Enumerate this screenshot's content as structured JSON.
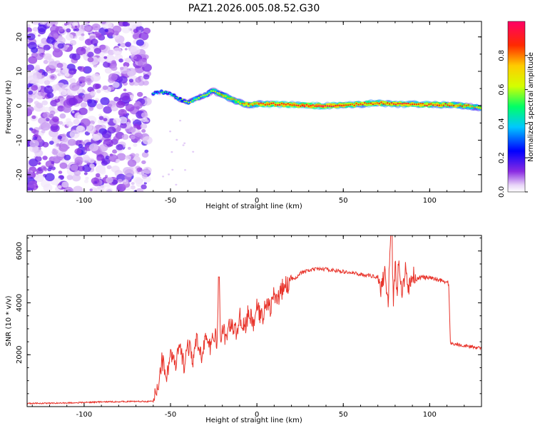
{
  "title": "PAZ1.2026.005.08.52.G30",
  "chart_data": [
    {
      "type": "heatmap",
      "name": "spectrogram",
      "xlabel": "Height of straight line (km)",
      "ylabel": "Frequency (Hz)",
      "xlim": [
        -133,
        130
      ],
      "ylim": [
        -25,
        24.5
      ],
      "xticks": [
        -100,
        -50,
        0,
        50,
        100
      ],
      "yticks": [
        -20,
        -10,
        0,
        10,
        20
      ],
      "xtick_labels": [
        "-100",
        "-50",
        "0",
        "50",
        "100"
      ],
      "ytick_labels": [
        "-20",
        "-10",
        "0",
        "10",
        "20"
      ],
      "noise_region_x": [
        -133,
        -60
      ],
      "signal_track": {
        "x": [
          -60,
          -55,
          -50,
          -45,
          -40,
          -35,
          -30,
          -25,
          -20,
          -15,
          -10,
          -5,
          0,
          10,
          20,
          30,
          40,
          50,
          60,
          70,
          80,
          90,
          100,
          110,
          120,
          130
        ],
        "freq": [
          3.5,
          4.0,
          3.5,
          2.0,
          1.0,
          2.0,
          3.0,
          4.5,
          3.0,
          2.0,
          1.0,
          0.3,
          0.5,
          0.5,
          0.3,
          0.0,
          0.0,
          0.2,
          0.5,
          0.8,
          0.5,
          0.5,
          0.3,
          0.3,
          0.0,
          -0.5
        ],
        "amplitude": [
          0.4,
          0.45,
          0.5,
          0.5,
          0.55,
          0.6,
          0.65,
          0.65,
          0.75,
          0.75,
          0.75,
          0.8,
          0.85,
          0.9,
          0.92,
          0.95,
          0.95,
          0.9,
          0.88,
          0.85,
          0.9,
          0.9,
          0.88,
          0.85,
          0.8,
          0.7
        ]
      },
      "colorbar": {
        "label": "Normalized spectral amplitude",
        "range": [
          0,
          1
        ],
        "ticks": [
          0.0,
          0.2,
          0.4,
          0.6,
          0.8
        ],
        "tick_labels": [
          "0.0",
          "0.2",
          "0.4",
          "0.6",
          "0.8"
        ],
        "colors": [
          "#ffffff",
          "#e8d4f8",
          "#8a2be2",
          "#0000ff",
          "#00c8ff",
          "#00ff66",
          "#d4ff00",
          "#ffcc00",
          "#ff2a00",
          "#ff0066"
        ]
      }
    },
    {
      "type": "line",
      "name": "snr",
      "xlabel": "Height of straight line (km)",
      "ylabel": "SNR (10 * v/v)",
      "xlim": [
        -133,
        130
      ],
      "ylim": [
        0,
        6600
      ],
      "xticks": [
        -100,
        -50,
        0,
        50,
        100
      ],
      "yticks": [
        2000,
        4000,
        6000
      ],
      "xtick_labels": [
        "-100",
        "-50",
        "0",
        "50",
        "100"
      ],
      "ytick_labels": [
        "2000",
        "4000",
        "6000"
      ],
      "color": "#e8332a",
      "x": [
        -133,
        -110,
        -90,
        -70,
        -60,
        -57,
        -55,
        -52,
        -50,
        -47,
        -45,
        -42,
        -40,
        -37,
        -35,
        -32,
        -30,
        -27,
        -25,
        -23,
        -22,
        -21,
        -20,
        -18,
        -15,
        -12,
        -10,
        -7,
        -5,
        -2,
        0,
        3,
        5,
        8,
        10,
        13,
        15,
        18,
        20,
        23,
        25,
        28,
        30,
        35,
        40,
        45,
        50,
        55,
        60,
        65,
        70,
        72,
        74,
        76,
        77,
        78,
        79,
        80,
        81,
        82,
        84,
        86,
        88,
        90,
        92,
        95,
        100,
        105,
        110,
        111,
        112,
        115,
        120,
        125,
        130
      ],
      "y": [
        120,
        140,
        180,
        200,
        200,
        900,
        1800,
        1200,
        2100,
        1500,
        2300,
        1600,
        2400,
        1800,
        2500,
        2000,
        2700,
        2200,
        2900,
        2400,
        5000,
        2500,
        3100,
        2600,
        3300,
        2800,
        3500,
        3000,
        3600,
        3200,
        3800,
        3400,
        4000,
        3800,
        4300,
        4200,
        4600,
        4700,
        4900,
        5000,
        5150,
        5200,
        5250,
        5300,
        5300,
        5250,
        5200,
        5150,
        5100,
        5050,
        5000,
        4500,
        5300,
        4000,
        6200,
        6600,
        3900,
        5600,
        4300,
        5500,
        4200,
        5400,
        4500,
        5200,
        4900,
        5000,
        4950,
        4900,
        4800,
        4750,
        2450,
        2400,
        2350,
        2300,
        2250
      ]
    }
  ]
}
